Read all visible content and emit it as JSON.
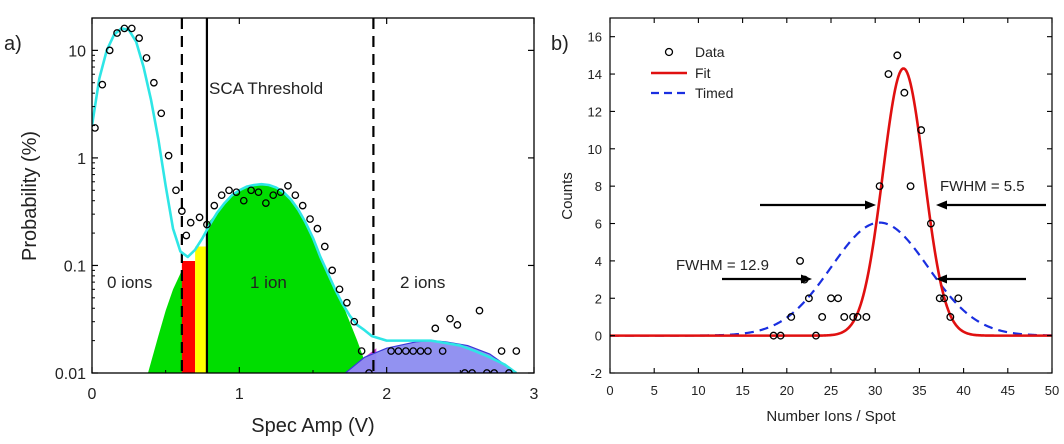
{
  "chart_data": [
    {
      "type": "scatter",
      "panel_label": "a)",
      "xlabel": "Spec Amp (V)",
      "ylabel": "Probability (%)",
      "xlim": [
        0,
        3
      ],
      "ylim": [
        0.01,
        20
      ],
      "y_scale": "log",
      "x_ticks": [
        "0",
        "1",
        "2",
        "3"
      ],
      "y_ticks": [
        {
          "value": 0.01,
          "label": "0.01"
        },
        {
          "value": 0.1,
          "label": "0.1"
        },
        {
          "value": 1,
          "label": "1"
        },
        {
          "value": 10,
          "label": "10"
        }
      ],
      "grid": false,
      "colors": {
        "fit": "#2ee6e6",
        "zero_fill": "#00dd00",
        "red_fill": "#ff0000",
        "yellow_fill": "#ffff00",
        "two_fill": "#8c8cf0",
        "two_fill_edge": "#3a3ad8",
        "points": "#000000"
      },
      "data_points": {
        "x": [
          0.02,
          0.07,
          0.12,
          0.17,
          0.22,
          0.27,
          0.32,
          0.37,
          0.42,
          0.47,
          0.52,
          0.57,
          0.61,
          0.64,
          0.67,
          0.73,
          0.78,
          0.83,
          0.88,
          0.93,
          0.98,
          1.03,
          1.08,
          1.13,
          1.18,
          1.23,
          1.28,
          1.33,
          1.38,
          1.43,
          1.48,
          1.53,
          1.58,
          1.63,
          1.68,
          1.73,
          1.78,
          1.83,
          1.88,
          2.03,
          2.08,
          2.13,
          2.18,
          2.23,
          2.28,
          2.33,
          2.38,
          2.43,
          2.48,
          2.53,
          2.58,
          2.63,
          2.68,
          2.73,
          2.78,
          2.83,
          2.88
        ],
        "y": [
          1.9,
          4.8,
          10,
          14.5,
          16,
          16,
          13,
          8.5,
          5,
          2.6,
          1.05,
          0.5,
          0.32,
          0.19,
          0.25,
          0.28,
          0.24,
          0.36,
          0.45,
          0.5,
          0.48,
          0.4,
          0.5,
          0.48,
          0.38,
          0.45,
          0.48,
          0.55,
          0.45,
          0.36,
          0.27,
          0.22,
          0.15,
          0.09,
          0.06,
          0.045,
          0.03,
          0.016,
          0.01,
          0.016,
          0.016,
          0.016,
          0.016,
          0.016,
          0.016,
          0.026,
          0.016,
          0.032,
          0.028,
          0.01,
          0.01,
          0.038,
          0.01,
          0.01,
          0.016,
          0.01,
          0.016
        ]
      },
      "fit_curve": {
        "x": [
          0.0,
          0.05,
          0.1,
          0.15,
          0.2,
          0.25,
          0.3,
          0.35,
          0.4,
          0.45,
          0.5,
          0.55,
          0.6,
          0.65,
          0.7,
          0.75,
          0.8,
          0.85,
          0.9,
          0.95,
          1.0,
          1.05,
          1.1,
          1.15,
          1.2,
          1.25,
          1.3,
          1.35,
          1.4,
          1.45,
          1.5,
          1.55,
          1.6,
          1.65,
          1.7,
          1.75,
          1.8,
          1.85,
          1.9,
          1.95,
          2.0,
          2.1,
          2.2,
          2.3,
          2.4,
          2.5,
          2.6,
          2.7,
          2.8,
          2.88
        ],
        "y": [
          2.0,
          5.5,
          10.0,
          14.0,
          16.0,
          15.5,
          12.0,
          7.0,
          3.5,
          1.5,
          0.55,
          0.22,
          0.135,
          0.12,
          0.14,
          0.18,
          0.24,
          0.31,
          0.38,
          0.45,
          0.5,
          0.54,
          0.56,
          0.57,
          0.56,
          0.53,
          0.48,
          0.41,
          0.33,
          0.25,
          0.18,
          0.12,
          0.085,
          0.06,
          0.044,
          0.034,
          0.028,
          0.025,
          0.022,
          0.021,
          0.02,
          0.02,
          0.02,
          0.02,
          0.019,
          0.018,
          0.016,
          0.014,
          0.012,
          0.01
        ]
      },
      "fill_regions": [
        {
          "color": "green",
          "x": [
            0.38,
            0.45,
            0.5,
            0.55,
            0.61
          ],
          "y": [
            0.01,
            0.022,
            0.038,
            0.06,
            0.09
          ],
          "x_end": 0.63
        },
        {
          "color": "red",
          "x_start": 0.61,
          "x_end": 0.7,
          "top": 0.11
        },
        {
          "color": "yellow",
          "x_start": 0.7,
          "x_end": 0.78,
          "top": 0.15
        },
        {
          "color": "green",
          "x": [
            0.78,
            0.9,
            1.0,
            1.1,
            1.2,
            1.3,
            1.4,
            1.5,
            1.6,
            1.7,
            1.8,
            1.88
          ],
          "y": [
            0.24,
            0.38,
            0.5,
            0.56,
            0.56,
            0.48,
            0.33,
            0.18,
            0.085,
            0.044,
            0.02,
            0.01
          ]
        },
        {
          "color": "magenta",
          "x": [
            1.72,
            1.85,
            1.93
          ],
          "y": [
            0.01,
            0.014,
            0.017
          ]
        },
        {
          "color": "blue",
          "x": [
            1.72,
            1.85,
            2.0,
            2.2,
            2.3,
            2.4,
            2.55,
            2.7,
            2.8,
            2.88
          ],
          "y": [
            0.01,
            0.014,
            0.017,
            0.0195,
            0.02,
            0.0195,
            0.018,
            0.015,
            0.012,
            0.01
          ]
        }
      ],
      "vlines": [
        {
          "x": 0.61,
          "style": "dashed"
        },
        {
          "x": 0.78,
          "style": "solid",
          "label": "SCA Threshold"
        },
        {
          "x": 1.91,
          "style": "dashed"
        }
      ],
      "annotations": [
        "0 ions",
        "1 ion",
        "2 ions",
        "SCA Threshold"
      ]
    },
    {
      "type": "scatter",
      "panel_label": "b)",
      "xlabel": "Number Ions / Spot",
      "ylabel": "Counts",
      "xlim": [
        0,
        50
      ],
      "ylim": [
        -2,
        17
      ],
      "x_ticks": [
        "0",
        "5",
        "10",
        "15",
        "20",
        "25",
        "30",
        "35",
        "40",
        "45",
        "50"
      ],
      "y_ticks": [
        "-2",
        "0",
        "2",
        "4",
        "6",
        "8",
        "10",
        "12",
        "14",
        "16"
      ],
      "grid": false,
      "legend": {
        "position": "top-left",
        "entries": [
          "Data",
          "Fit",
          "Timed"
        ]
      },
      "colors": {
        "fit": "#e01010",
        "timed": "#1a2fe0",
        "points": "#000000"
      },
      "data_points": {
        "x": [
          18.5,
          19.3,
          20.5,
          21.5,
          22,
          22.5,
          23.3,
          24,
          25,
          25.8,
          26.5,
          27.5,
          28,
          29,
          30.5,
          31.5,
          32.5,
          33.3,
          34,
          35.2,
          36.3,
          37.3,
          37.8,
          38.5,
          39.4
        ],
        "y": [
          0,
          0,
          1,
          4,
          3,
          2,
          0,
          1,
          2,
          2,
          1,
          1,
          1,
          1,
          8,
          14,
          15,
          13,
          8,
          11,
          6,
          2,
          2,
          1,
          2
        ]
      },
      "series": [
        {
          "name": "Fit",
          "style": "solid",
          "mean": 33.2,
          "fwhm": 5.5,
          "peak": 14.3,
          "baseline": 0
        },
        {
          "name": "Timed",
          "style": "dashed",
          "mean": 30.5,
          "fwhm": 12.9,
          "peak": 6.05,
          "baseline": 0
        }
      ],
      "annotations": [
        "FWHM = 5.5",
        "FWHM = 12.9"
      ]
    }
  ]
}
